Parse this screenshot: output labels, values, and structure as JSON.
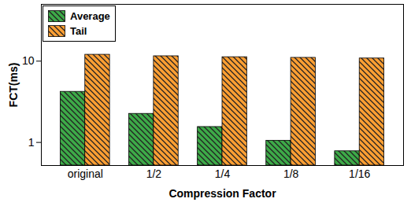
{
  "chart_data": {
    "type": "bar",
    "x_label": "Compression Factor",
    "y_label": "FCT(ms)",
    "categories": [
      "original",
      "1/2",
      "1/4",
      "1/8",
      "1/16"
    ],
    "series": [
      {
        "name": "Average",
        "color": "#3daa48",
        "values": [
          4.2,
          2.25,
          1.55,
          1.05,
          0.78
        ]
      },
      {
        "name": "Tail",
        "color": "#ff9f33",
        "values": [
          12,
          11.5,
          11.2,
          11,
          10.8
        ]
      }
    ],
    "ylim": [
      0.52,
      50
    ],
    "yticks": [
      1,
      10
    ],
    "log": "y",
    "legend": "upper left",
    "grid": false
  }
}
